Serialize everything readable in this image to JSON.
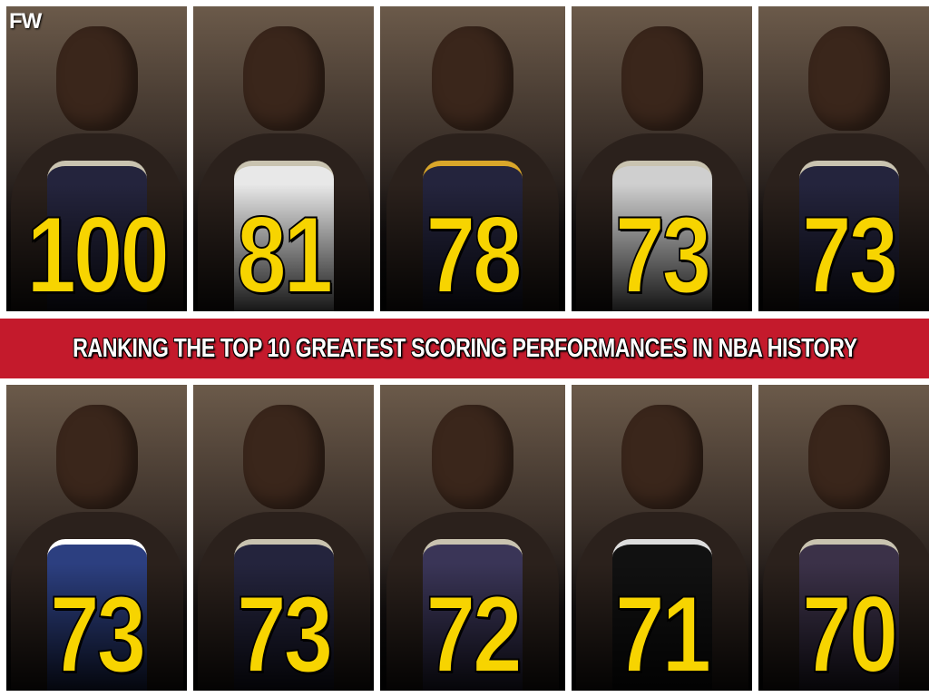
{
  "logo": "FW",
  "banner": {
    "title": "RANKING THE TOP 10 GREATEST SCORING PERFORMANCES IN NBA HISTORY",
    "color": "#c41a2c"
  },
  "number_color": "#f7d400",
  "top_row": [
    {
      "points": "100"
    },
    {
      "points": "81"
    },
    {
      "points": "78"
    },
    {
      "points": "73"
    },
    {
      "points": "73"
    }
  ],
  "bottom_row": [
    {
      "points": "73"
    },
    {
      "points": "73"
    },
    {
      "points": "72"
    },
    {
      "points": "71"
    },
    {
      "points": "70"
    }
  ]
}
